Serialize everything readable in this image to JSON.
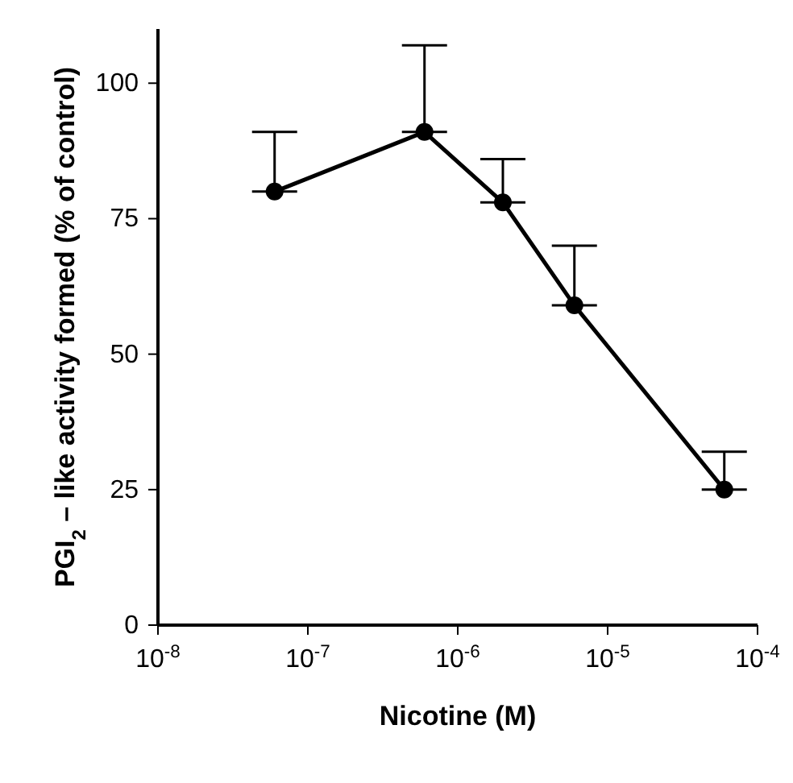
{
  "chart_data": {
    "type": "line",
    "xlabel": "Nicotine (M)",
    "ylabel": "PGI$_{2}$ – like activity formed (% of control)",
    "x": [
      6e-08,
      6e-07,
      2e-06,
      6e-06,
      6e-05
    ],
    "series": [
      {
        "color": "#000000",
        "values": [
          80,
          91,
          78,
          59,
          25
        ],
        "errors": [
          [
            80,
            91
          ],
          [
            91,
            107
          ],
          [
            78,
            86
          ],
          [
            59,
            70
          ],
          [
            25,
            32
          ]
        ]
      }
    ],
    "log": "x",
    "xlim": [
      1e-08,
      0.0001
    ],
    "xticks": [
      {
        "value": 1e-08,
        "label": "10$^{-8}$"
      },
      {
        "value": 1e-07,
        "label": "10$^{-7}$"
      },
      {
        "value": 1e-06,
        "label": "10$^{-6}$"
      },
      {
        "value": 1e-05,
        "label": "10$^{-5}$"
      },
      {
        "value": 0.0001,
        "label": "10$^{-4}$"
      }
    ],
    "ylim": [
      0,
      110
    ],
    "yticks": [
      0,
      25,
      50,
      75,
      100
    ],
    "grid": false,
    "legend": false,
    "marker": "circle",
    "line_style": "solid"
  }
}
